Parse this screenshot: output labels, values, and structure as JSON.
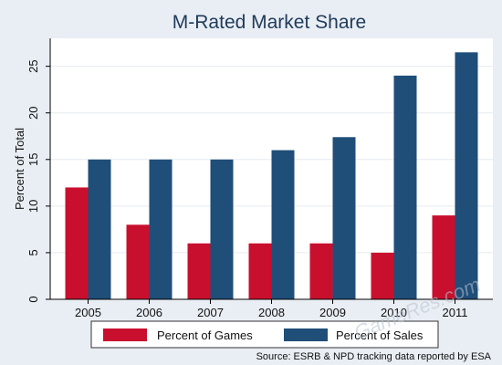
{
  "chart_data": {
    "type": "bar",
    "title": "M-Rated Market Share",
    "ylabel": "Percent of Total",
    "xlabel": "",
    "categories": [
      "2005",
      "2006",
      "2007",
      "2008",
      "2009",
      "2010",
      "2011"
    ],
    "series": [
      {
        "name": "Percent of Games",
        "color": "#c8102e",
        "values": [
          12,
          8,
          6,
          6,
          6,
          5,
          9
        ]
      },
      {
        "name": "Percent of Sales",
        "color": "#1f4e79",
        "values": [
          15,
          15,
          15,
          16,
          17.4,
          24,
          26.5
        ]
      }
    ],
    "ylim": [
      0,
      28
    ],
    "yticks": [
      0,
      5,
      10,
      15,
      20,
      25
    ],
    "grid": true,
    "legend_position": "bottom",
    "source": "Source: ESRB & NPD tracking data reported by ESA",
    "watermark": "GameRes.com",
    "plot_background": "#ffffff",
    "page_background": "#e9eef4",
    "grid_color": "#e6ebf0"
  }
}
